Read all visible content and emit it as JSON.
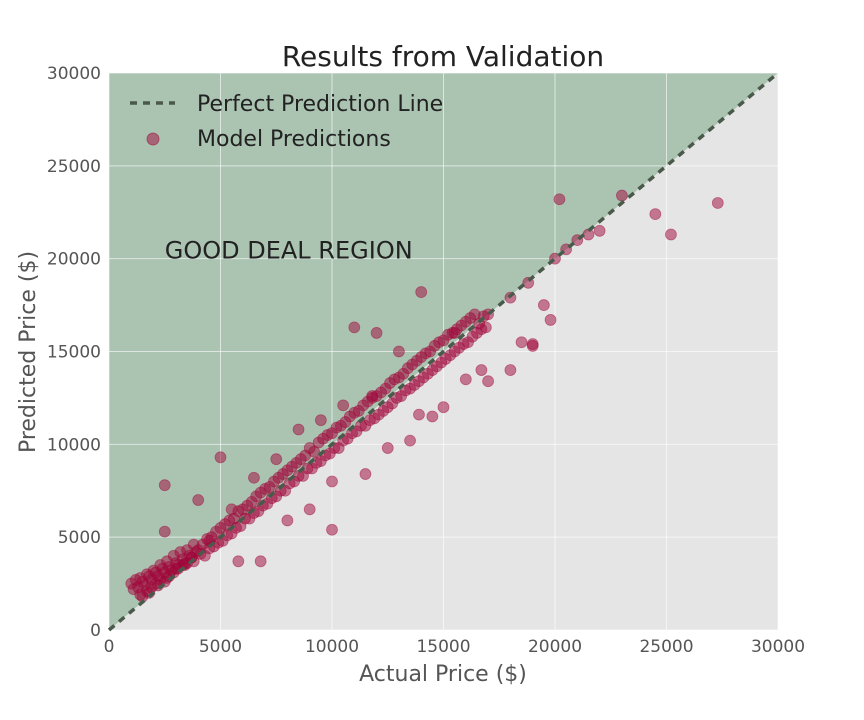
{
  "chart_data": {
    "type": "scatter",
    "title": "Results from Validation",
    "xlabel": "Actual Price ($)",
    "ylabel": "Predicted Price ($)",
    "xlim": [
      0,
      30000
    ],
    "ylim": [
      0,
      30000
    ],
    "xticks": [
      "0",
      "5000",
      "10000",
      "15000",
      "20000",
      "25000",
      "30000"
    ],
    "yticks": [
      "0",
      "5000",
      "10000",
      "15000",
      "20000",
      "25000",
      "30000"
    ],
    "grid": true,
    "legend": {
      "placement": "top-left",
      "entries": [
        "Perfect Prediction Line",
        "Model Predictions"
      ]
    },
    "annotation": {
      "text": "GOOD DEAL REGION",
      "x": 2500,
      "y": 20000
    },
    "colors": {
      "points": "#a0063a",
      "line": "#4a5a4a",
      "good_region": "#abc4b2",
      "background": "#e5e5e5"
    },
    "series": [
      {
        "type": "line",
        "x": [
          0,
          30000
        ],
        "y": [
          0,
          30000
        ]
      },
      {
        "type": "scatter",
        "x": [
          1000,
          1100,
          1200,
          1300,
          1400,
          1500,
          1600,
          1700,
          1800,
          1900,
          2000,
          2100,
          2200,
          2300,
          2400,
          2500,
          2600,
          2700,
          2800,
          2900,
          3000,
          3100,
          3200,
          3300,
          3400,
          3500,
          3600,
          3700,
          3800,
          3900,
          4000,
          4200,
          4400,
          4600,
          4800,
          5000,
          5200,
          5400,
          5600,
          5800,
          6000,
          6200,
          6400,
          6600,
          6800,
          7000,
          7200,
          7400,
          7600,
          7800,
          8000,
          8200,
          8400,
          8600,
          8800,
          9000,
          9200,
          9400,
          9600,
          9800,
          10000,
          10200,
          10400,
          10600,
          10800,
          11000,
          11200,
          11400,
          11600,
          11800,
          12000,
          12200,
          12400,
          12600,
          12800,
          13000,
          13200,
          13400,
          13600,
          13800,
          14000,
          14200,
          14400,
          14600,
          14800,
          15000,
          15200,
          15400,
          15600,
          15800,
          16000,
          16200,
          16400,
          16600,
          16800,
          17000,
          1500,
          1700,
          1900,
          2100,
          2300,
          2500,
          2700,
          2900,
          3100,
          3300,
          3500,
          3700,
          4100,
          4500,
          4900,
          5300,
          5700,
          6100,
          6500,
          6900,
          7300,
          7700,
          8100,
          8500,
          8900,
          9300,
          9700,
          10100,
          10500,
          10900,
          11300,
          11700,
          12100,
          12500,
          12900,
          13300,
          13700,
          14100,
          14500,
          14900,
          15300,
          15700,
          16100,
          16500,
          16900,
          1400,
          1800,
          2200,
          2600,
          3000,
          3400,
          3800,
          4300,
          4700,
          5100,
          5500,
          5900,
          6300,
          6700,
          7100,
          7500,
          7900,
          8300,
          8700,
          9100,
          9500,
          9900,
          10300,
          10700,
          11100,
          11500,
          11900,
          12300,
          12700,
          13100,
          13500,
          13900,
          14300,
          14700,
          15100,
          15500,
          15900,
          16300,
          16700,
          2500,
          4000,
          5000,
          5500,
          6500,
          7500,
          8500,
          9500,
          10500,
          11000,
          12000,
          13000,
          14000,
          15500,
          2500,
          4500,
          5800,
          6800,
          8000,
          9000,
          10000,
          11500,
          12500,
          13500,
          14500,
          15000,
          16000,
          17000,
          18000,
          18500,
          19000,
          19500,
          20000,
          20500,
          21000,
          21500,
          22000,
          23000,
          24500,
          25200,
          27300,
          20200,
          18000,
          18800,
          19800,
          16700,
          11800,
          13900,
          10000,
          19000
        ],
        "y": [
          2500,
          2200,
          2700,
          2300,
          2800,
          2600,
          2400,
          3000,
          2900,
          2700,
          3200,
          3100,
          2900,
          3500,
          3300,
          3100,
          3700,
          3400,
          3200,
          4000,
          3600,
          3500,
          4200,
          3800,
          3600,
          4300,
          4000,
          3900,
          4600,
          4200,
          4300,
          4600,
          4900,
          5000,
          5300,
          5500,
          5700,
          5900,
          6000,
          6400,
          6500,
          6700,
          6900,
          7200,
          7400,
          7600,
          7700,
          8000,
          8200,
          8400,
          8600,
          8800,
          9000,
          9200,
          9400,
          9800,
          9600,
          10100,
          10300,
          10500,
          10600,
          10900,
          11000,
          11200,
          11500,
          11700,
          11800,
          12100,
          12300,
          12500,
          12600,
          12800,
          13000,
          13300,
          13500,
          13600,
          13800,
          14100,
          14300,
          14500,
          14700,
          14900,
          15000,
          15300,
          15500,
          15600,
          15900,
          16000,
          16200,
          16400,
          16600,
          16800,
          17000,
          16500,
          16900,
          17000,
          1800,
          2100,
          2300,
          2500,
          2700,
          2600,
          2900,
          3100,
          3300,
          3500,
          3600,
          3900,
          4100,
          4400,
          4700,
          5100,
          5500,
          6000,
          6300,
          6700,
          7100,
          7500,
          7900,
          8300,
          8700,
          9000,
          9400,
          9800,
          10200,
          10600,
          11000,
          11300,
          11600,
          12000,
          12500,
          12900,
          13200,
          13600,
          14000,
          14400,
          14800,
          15200,
          15500,
          16000,
          16300,
          1900,
          2000,
          2400,
          2800,
          3300,
          3500,
          3700,
          4000,
          4500,
          4800,
          5200,
          5600,
          6000,
          6400,
          6800,
          7200,
          7500,
          8000,
          8300,
          8700,
          9100,
          9500,
          9800,
          10300,
          10700,
          11000,
          11400,
          11800,
          12200,
          12600,
          13000,
          13400,
          13800,
          14200,
          14600,
          15000,
          15400,
          15800,
          16200,
          5300,
          7000,
          9300,
          6500,
          8200,
          9200,
          10800,
          11300,
          12100,
          16300,
          16000,
          15000,
          18200,
          16000,
          7800,
          4800,
          3700,
          3700,
          5900,
          6500,
          5400,
          8400,
          9800,
          10200,
          11500,
          12000,
          13500,
          13400,
          14000,
          15500,
          15400,
          17500,
          20000,
          20500,
          21000,
          21300,
          21500,
          23400,
          22400,
          21300,
          23000,
          23200,
          17900,
          18700,
          16700,
          14000,
          12600,
          11600,
          8000,
          15300
        ]
      }
    ]
  }
}
